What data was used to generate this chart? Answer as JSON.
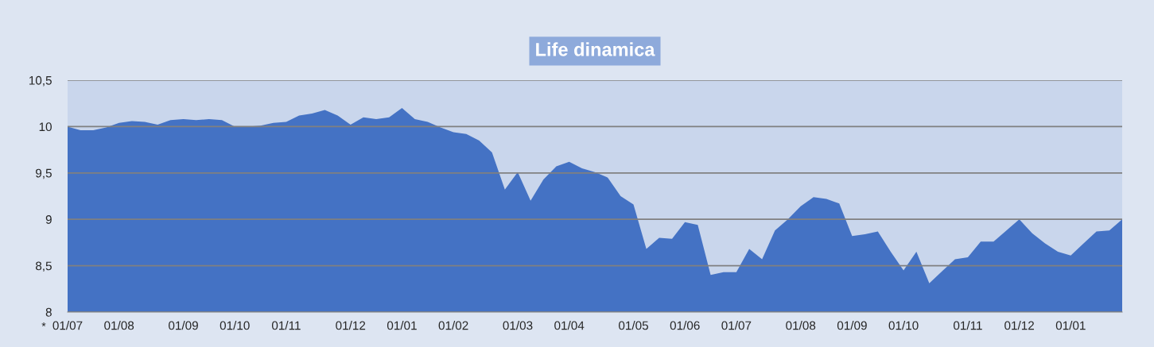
{
  "chart_data": {
    "type": "area",
    "title": "Life dinamica",
    "categories": [
      "01/07",
      null,
      null,
      null,
      "01/08",
      null,
      null,
      null,
      null,
      "01/09",
      null,
      null,
      null,
      "01/10",
      null,
      null,
      null,
      "01/11",
      null,
      null,
      null,
      null,
      "01/12",
      null,
      null,
      null,
      "01/01",
      null,
      null,
      null,
      "01/02",
      null,
      null,
      null,
      null,
      "01/03",
      null,
      null,
      null,
      "01/04",
      null,
      null,
      null,
      null,
      "01/05",
      null,
      null,
      null,
      "01/06",
      null,
      null,
      null,
      "01/07",
      null,
      null,
      null,
      null,
      "01/08",
      null,
      null,
      null,
      "01/09",
      null,
      null,
      null,
      "01/10",
      null,
      null,
      null,
      null,
      "01/11",
      null,
      null,
      null,
      "01/12",
      null,
      null,
      null,
      "01/01",
      null,
      null,
      null,
      null
    ],
    "series": [
      {
        "color": "#4472c4",
        "values": [
          10.0,
          9.96,
          9.96,
          9.99,
          10.04,
          10.06,
          10.05,
          10.02,
          10.07,
          10.08,
          10.07,
          10.08,
          10.07,
          10.0,
          10.0,
          10.01,
          10.04,
          10.05,
          10.12,
          10.14,
          10.18,
          10.12,
          10.02,
          10.1,
          10.08,
          10.1,
          10.2,
          10.08,
          10.05,
          9.99,
          9.94,
          9.92,
          9.85,
          9.72,
          9.32,
          9.51,
          9.2,
          9.43,
          9.57,
          9.62,
          9.55,
          9.51,
          9.45,
          9.25,
          9.16,
          8.68,
          8.8,
          8.79,
          8.97,
          8.94,
          8.4,
          8.43,
          8.43,
          8.68,
          8.57,
          8.88,
          9.0,
          9.14,
          9.24,
          9.22,
          9.17,
          8.82,
          8.84,
          8.87,
          8.65,
          8.45,
          8.65,
          8.31,
          8.44,
          8.57,
          8.59,
          8.76,
          8.76,
          8.88,
          9.0,
          8.85,
          8.74,
          8.65,
          8.61,
          8.74,
          8.87,
          8.88,
          9.0
        ]
      }
    ],
    "ylim": [
      8,
      10.5
    ],
    "yticks": [
      8,
      {
        "value": 8.5,
        "label": "8,5"
      },
      9,
      {
        "value": 9.5,
        "label": "9,5"
      },
      10,
      {
        "value": 10.5,
        "label": "10,5"
      }
    ],
    "grid": "y",
    "annotations": [
      "*"
    ]
  }
}
